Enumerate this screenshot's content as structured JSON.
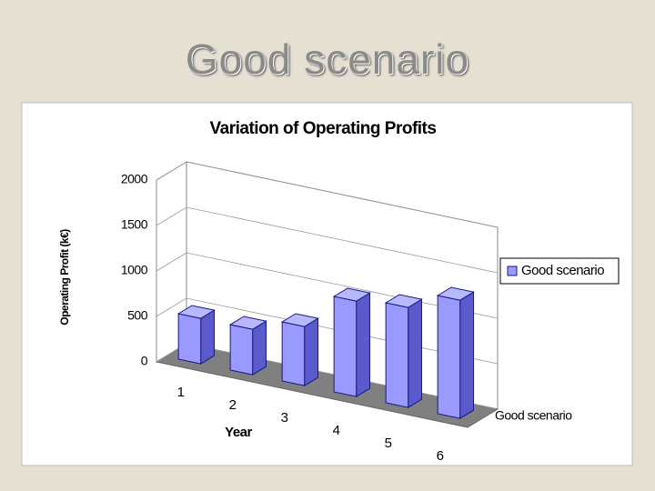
{
  "slide_title": "Good scenario",
  "chart_data": {
    "type": "bar3d",
    "title": "Variation of Operating Profits",
    "x_label": "Year",
    "y_label": "Operating Profit (k€)",
    "categories": [
      "1",
      "2",
      "3",
      "4",
      "5",
      "6"
    ],
    "series": [
      {
        "name": "Good scenario",
        "color": "#9999ff",
        "values": [
          500,
          500,
          650,
          1050,
          1100,
          1300
        ]
      }
    ],
    "ylim": [
      0,
      2000
    ],
    "yticks": [
      0,
      500,
      1000,
      1500,
      2000
    ],
    "grid": true,
    "legend": "right"
  }
}
